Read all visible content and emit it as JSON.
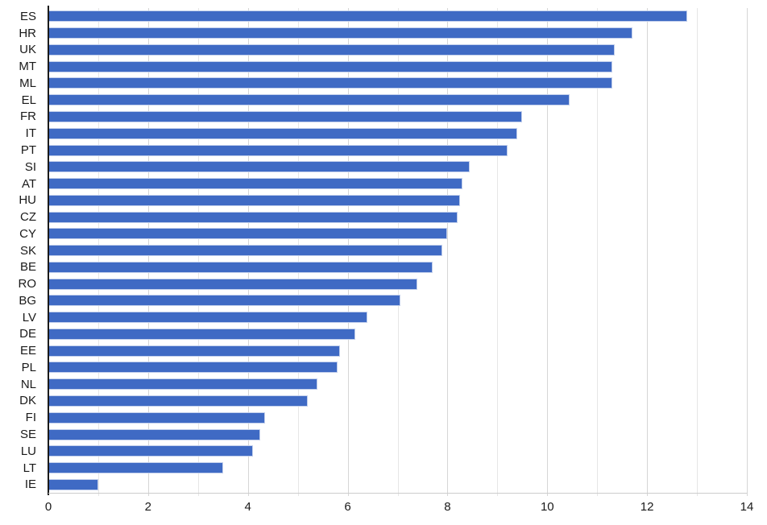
{
  "chart_data": {
    "type": "bar",
    "orientation": "horizontal",
    "title": "",
    "xlabel": "",
    "ylabel": "",
    "categories": [
      "ES",
      "HR",
      "UK",
      "MT",
      "ML",
      "EL",
      "FR",
      "IT",
      "PT",
      "SI",
      "AT",
      "HU",
      "CZ",
      "CY",
      "SK",
      "BE",
      "RO",
      "BG",
      "LV",
      "DE",
      "EE",
      "PL",
      "NL",
      "DK",
      "FI",
      "SE",
      "LU",
      "LT",
      "IE"
    ],
    "values": [
      12.8,
      11.7,
      11.35,
      11.3,
      11.3,
      10.45,
      9.5,
      9.4,
      9.2,
      8.45,
      8.3,
      8.25,
      8.2,
      8.0,
      7.9,
      7.7,
      7.4,
      7.05,
      6.4,
      6.15,
      5.85,
      5.8,
      5.4,
      5.2,
      4.35,
      4.25,
      4.1,
      3.5,
      1.0
    ],
    "xlim": [
      0,
      14
    ],
    "x_ticks": [
      0,
      2,
      4,
      6,
      8,
      10,
      12,
      14
    ],
    "minor_gridline_step": 1,
    "grid": true,
    "legend": false,
    "colors": {
      "bar_fill": "#3f6ac4",
      "bar_border": "#c3d0ec",
      "grid_minor": "#e6e6e6",
      "grid_major": "#d6d6d6",
      "y_axis_line": "#1a1a1a",
      "baseline": "#cccccc",
      "labels": "#1a1a1a"
    }
  }
}
